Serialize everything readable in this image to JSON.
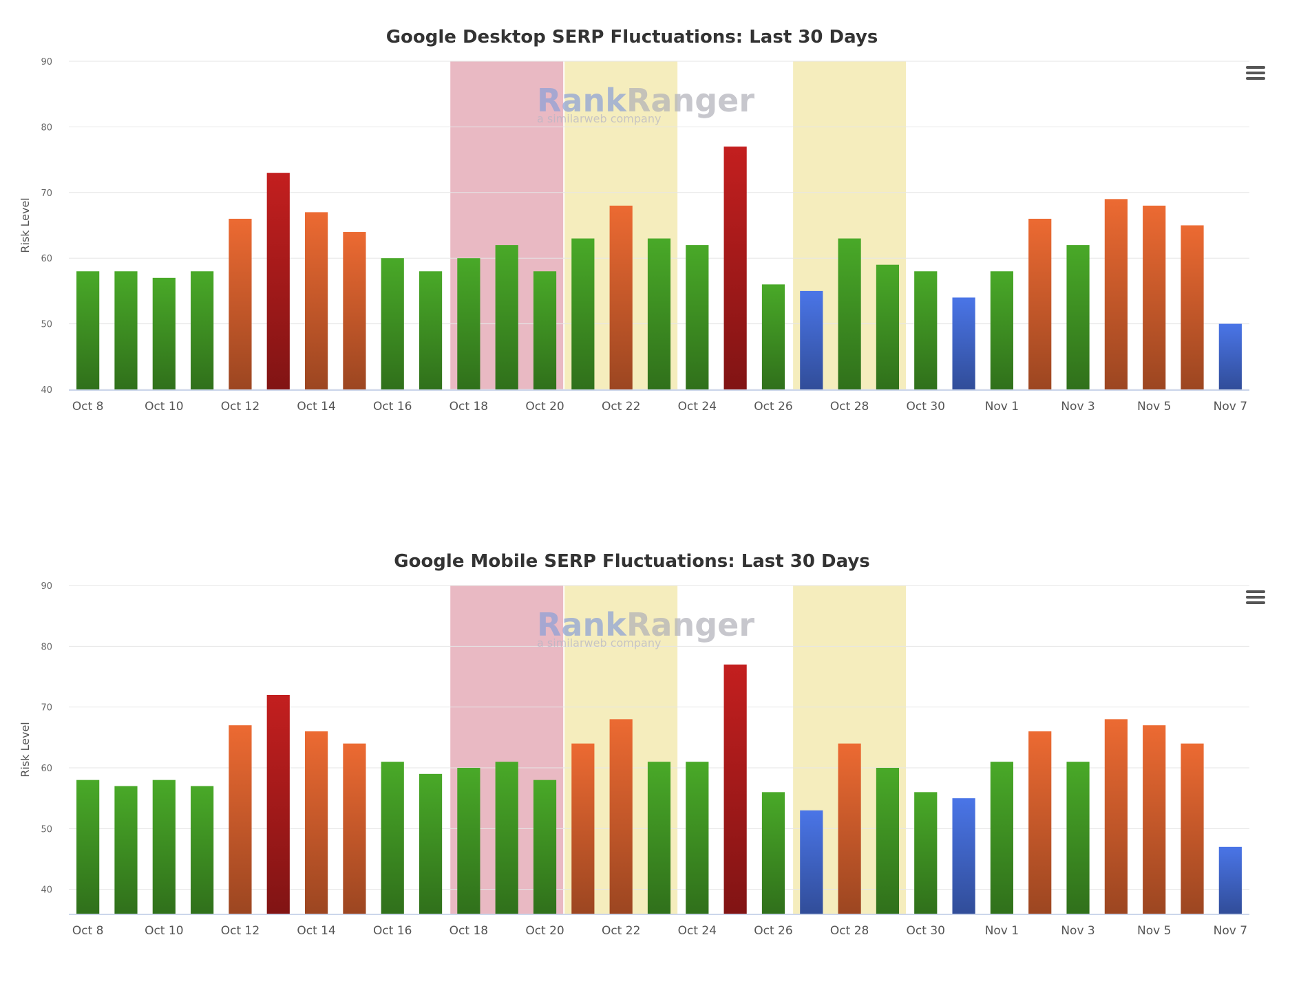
{
  "colors": {
    "green": "#3e8f22",
    "orange": "#c85a2a",
    "red": "#a51a1a",
    "blue": "#3f63c4",
    "band_red": "#e9b9c3",
    "band_yellow": "#f5edbd",
    "grid": "#e6e6e6"
  },
  "watermark": {
    "brand_a": "Rank",
    "brand_b": "Ranger",
    "tagline": "a similarweb company"
  },
  "charts": [
    {
      "title": "Google Desktop SERP Fluctuations: Last 30 Days",
      "menu_icon": "hamburger-icon",
      "chart_data": {
        "type": "bar",
        "title": "Google Desktop SERP Fluctuations: Last 30 Days",
        "ylabel": "Risk Level",
        "xlabel": "",
        "ylim": [
          40,
          90
        ],
        "yticks": [
          "90",
          "80",
          "70",
          "60",
          "50",
          "40"
        ],
        "categories": [
          "Oct 8",
          "Oct 9",
          "Oct 10",
          "Oct 11",
          "Oct 12",
          "Oct 13",
          "Oct 14",
          "Oct 15",
          "Oct 16",
          "Oct 17",
          "Oct 18",
          "Oct 19",
          "Oct 20",
          "Oct 21",
          "Oct 22",
          "Oct 23",
          "Oct 24",
          "Oct 25",
          "Oct 26",
          "Oct 27",
          "Oct 28",
          "Oct 29",
          "Oct 30",
          "Oct 31",
          "Nov 1",
          "Nov 2",
          "Nov 3",
          "Nov 4",
          "Nov 5",
          "Nov 6",
          "Nov 7"
        ],
        "x_tick_labels": [
          "Oct 8",
          "Oct 10",
          "Oct 12",
          "Oct 14",
          "Oct 16",
          "Oct 18",
          "Oct 20",
          "Oct 22",
          "Oct 24",
          "Oct 26",
          "Oct 28",
          "Oct 30",
          "Nov 1",
          "Nov 3",
          "Nov 5",
          "Nov 7"
        ],
        "values": [
          58,
          58,
          57,
          58,
          66,
          73,
          67,
          64,
          60,
          58,
          60,
          62,
          58,
          63,
          68,
          63,
          62,
          77,
          56,
          55,
          63,
          59,
          58,
          54,
          58,
          66,
          62,
          69,
          68,
          65,
          50
        ],
        "bar_colors": [
          "green",
          "green",
          "green",
          "green",
          "orange",
          "red",
          "orange",
          "orange",
          "green",
          "green",
          "green",
          "green",
          "green",
          "green",
          "orange",
          "green",
          "green",
          "red",
          "green",
          "blue",
          "green",
          "green",
          "green",
          "blue",
          "green",
          "orange",
          "green",
          "orange",
          "orange",
          "orange",
          "blue"
        ],
        "bands": [
          {
            "from": "Oct 18",
            "to": "Oct 20",
            "color": "band_red"
          },
          {
            "from": "Oct 21",
            "to": "Oct 23",
            "color": "band_yellow"
          },
          {
            "from": "Oct 27",
            "to": "Oct 29",
            "color": "band_yellow"
          }
        ],
        "grid": true,
        "legend": "none"
      }
    },
    {
      "title": "Google Mobile SERP Fluctuations: Last 30 Days",
      "menu_icon": "hamburger-icon",
      "chart_data": {
        "type": "bar",
        "title": "Google Mobile SERP Fluctuations: Last 30 Days",
        "ylabel": "Risk Level",
        "xlabel": "",
        "ylim": [
          36,
          90
        ],
        "yticks": [
          "90",
          "80",
          "70",
          "60",
          "50",
          "40"
        ],
        "categories": [
          "Oct 8",
          "Oct 9",
          "Oct 10",
          "Oct 11",
          "Oct 12",
          "Oct 13",
          "Oct 14",
          "Oct 15",
          "Oct 16",
          "Oct 17",
          "Oct 18",
          "Oct 19",
          "Oct 20",
          "Oct 21",
          "Oct 22",
          "Oct 23",
          "Oct 24",
          "Oct 25",
          "Oct 26",
          "Oct 27",
          "Oct 28",
          "Oct 29",
          "Oct 30",
          "Oct 31",
          "Nov 1",
          "Nov 2",
          "Nov 3",
          "Nov 4",
          "Nov 5",
          "Nov 6",
          "Nov 7"
        ],
        "x_tick_labels": [
          "Oct 8",
          "Oct 10",
          "Oct 12",
          "Oct 14",
          "Oct 16",
          "Oct 18",
          "Oct 20",
          "Oct 22",
          "Oct 24",
          "Oct 26",
          "Oct 28",
          "Oct 30",
          "Nov 1",
          "Nov 3",
          "Nov 5",
          "Nov 7"
        ],
        "values": [
          58,
          57,
          58,
          57,
          67,
          72,
          66,
          64,
          61,
          59,
          60,
          61,
          58,
          64,
          68,
          61,
          61,
          77,
          56,
          53,
          64,
          60,
          56,
          55,
          61,
          66,
          61,
          68,
          67,
          64,
          47
        ],
        "bar_colors": [
          "green",
          "green",
          "green",
          "green",
          "orange",
          "red",
          "orange",
          "orange",
          "green",
          "green",
          "green",
          "green",
          "green",
          "orange",
          "orange",
          "green",
          "green",
          "red",
          "green",
          "blue",
          "orange",
          "green",
          "green",
          "blue",
          "green",
          "orange",
          "green",
          "orange",
          "orange",
          "orange",
          "blue"
        ],
        "bands": [
          {
            "from": "Oct 18",
            "to": "Oct 20",
            "color": "band_red"
          },
          {
            "from": "Oct 21",
            "to": "Oct 23",
            "color": "band_yellow"
          },
          {
            "from": "Oct 27",
            "to": "Oct 29",
            "color": "band_yellow"
          }
        ],
        "grid": true,
        "legend": "none"
      }
    }
  ]
}
